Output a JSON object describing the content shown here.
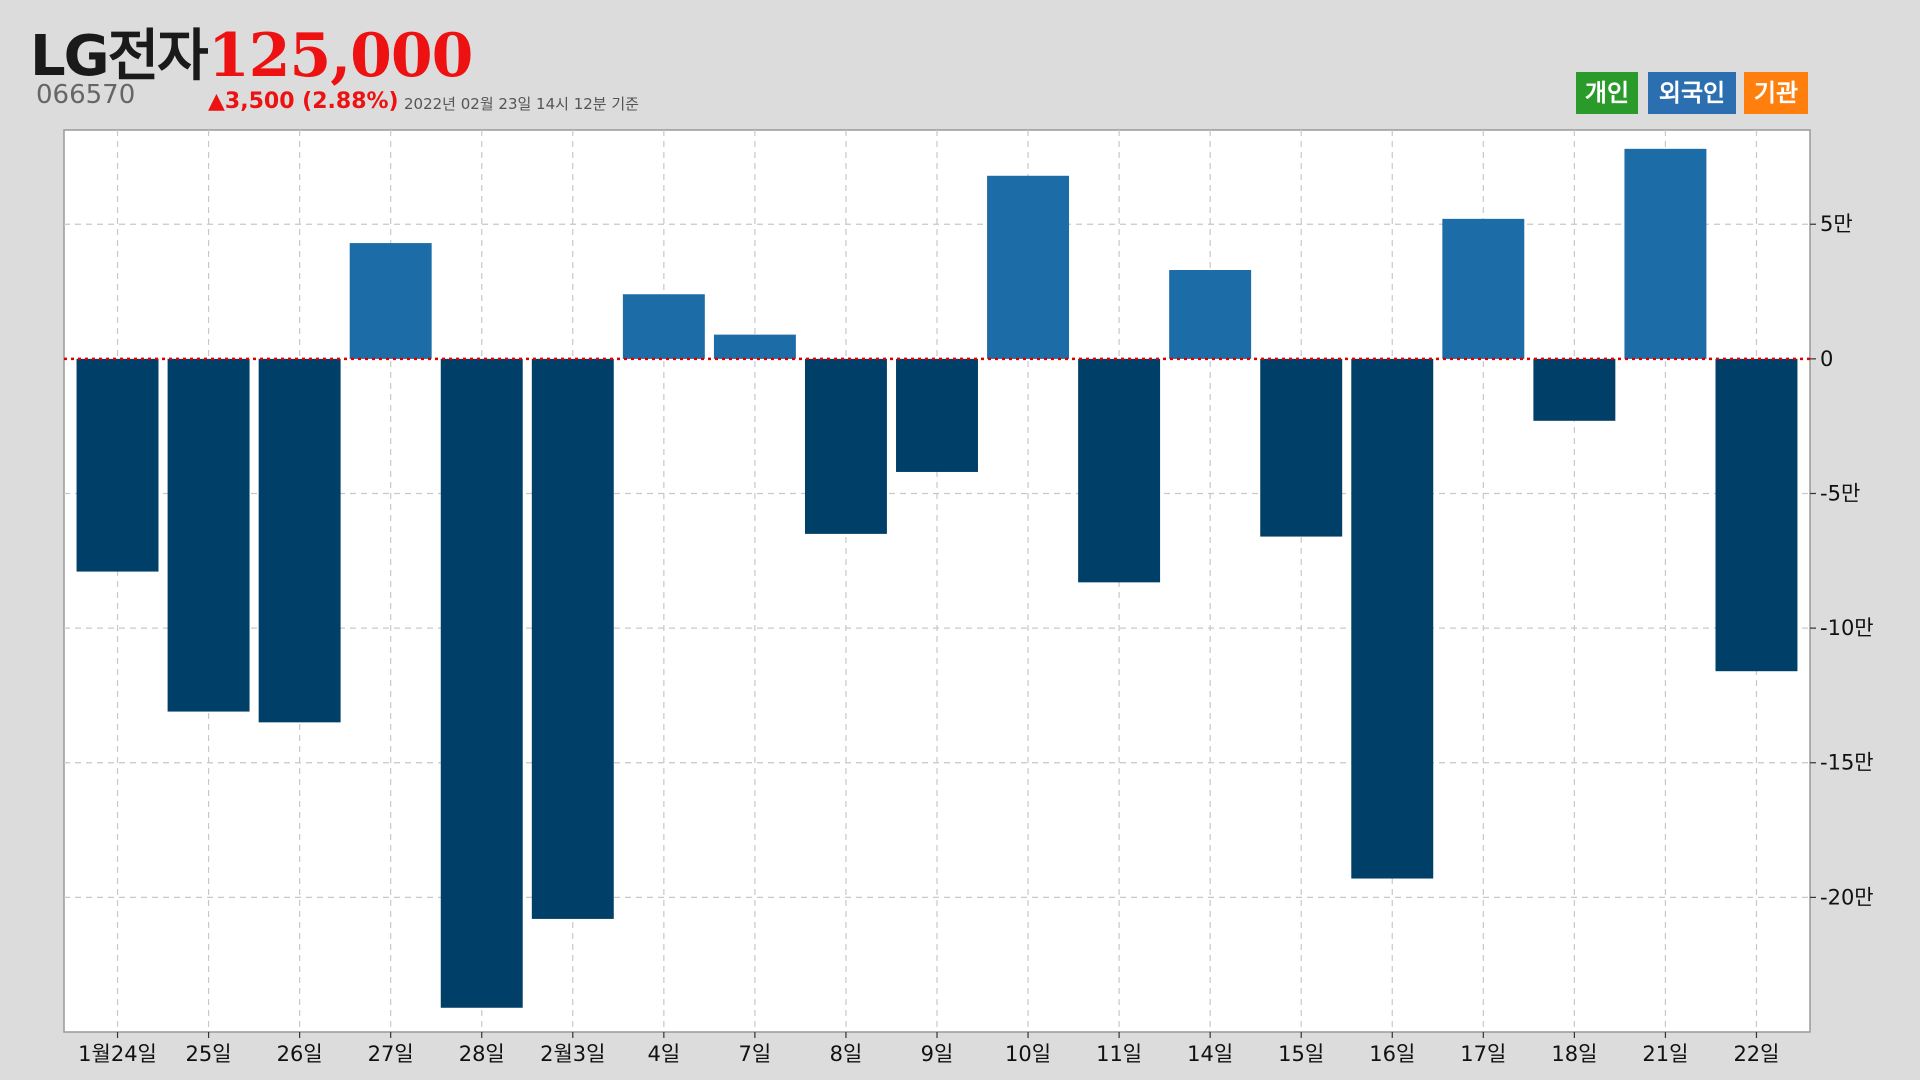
{
  "header": {
    "company": "LG전자",
    "price": "125,000",
    "ticker": "066570",
    "change": "▲3,500 (2.88%)",
    "timestamp": "2022년 02월 23일 14시 12분 기준"
  },
  "legend": {
    "individual": "개인",
    "foreign": "외국인",
    "institution": "기관"
  },
  "colors": {
    "positive": "#1c6ca8",
    "negative": "#004068",
    "zero_line": "#dd0000",
    "individual": "#2a9a2a",
    "foreign": "#2b6fb0",
    "institution": "#ff7f0e",
    "price": "#ee1111"
  },
  "chart_data": {
    "type": "bar",
    "series": [
      {
        "name": "외국인",
        "values": [
          -79000,
          -131000,
          -135000,
          43000,
          -241000,
          -208000,
          24000,
          9000,
          -65000,
          -42000,
          68000,
          -83000,
          33000,
          -66000,
          -193000,
          52000,
          -23000,
          78000,
          -116000
        ]
      }
    ],
    "categories": [
      "1월24일",
      "25일",
      "26일",
      "27일",
      "28일",
      "2월3일",
      "4일",
      "7일",
      "8일",
      "9일",
      "10일",
      "11일",
      "14일",
      "15일",
      "16일",
      "17일",
      "18일",
      "21일",
      "22일"
    ],
    "ylim": [
      -250000,
      85000
    ],
    "y_ticks": [
      50000,
      0,
      -50000,
      -100000,
      -150000,
      -200000
    ],
    "y_tick_labels": [
      "5만",
      "0",
      "-5만",
      "-10만",
      "-15만",
      "-20만"
    ],
    "grid": true,
    "zero_line": "dotted red"
  }
}
